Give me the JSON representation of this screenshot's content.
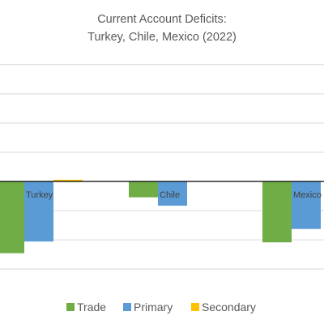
{
  "chart_data": {
    "type": "bar",
    "title": "Current Account Deficits:",
    "subtitle": "Turkey, Chile, Mexico (2022)",
    "categories": [
      "Turkey",
      "Chile",
      "Mexico"
    ],
    "series": [
      {
        "name": "Trade",
        "color": "#70ad47",
        "values": [
          -8.6,
          -1.9,
          -7.3
        ]
      },
      {
        "name": "Primary",
        "color": "#5b9bd5",
        "values": [
          -7.2,
          -2.9,
          -5.7
        ]
      },
      {
        "name": "Secondary",
        "color": "#ffc000",
        "values": [
          0.2,
          0.0,
          0.0
        ]
      }
    ],
    "ylim": [
      -11,
      15
    ],
    "grid": true,
    "legend_position": "bottom"
  }
}
